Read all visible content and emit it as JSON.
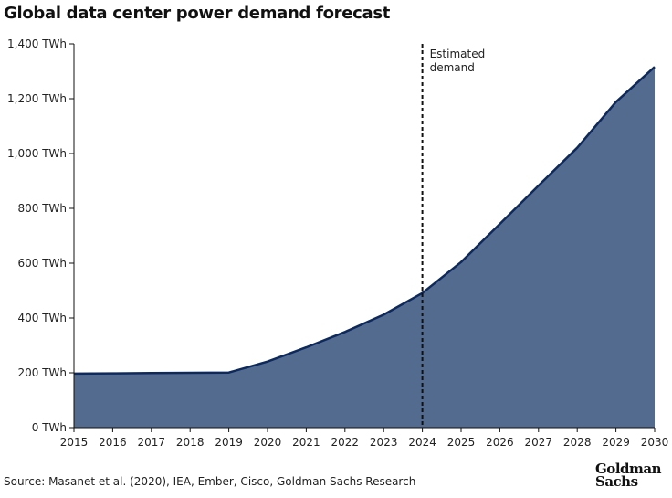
{
  "chart_data": {
    "type": "area",
    "title": "Global data center power demand forecast",
    "x": [
      2015,
      2016,
      2017,
      2018,
      2019,
      2020,
      2021,
      2022,
      2023,
      2024,
      2025,
      2026,
      2027,
      2028,
      2029,
      2030
    ],
    "values": [
      197,
      198,
      199,
      200,
      201,
      241,
      293,
      349,
      412,
      491,
      604,
      743,
      883,
      1021,
      1188,
      1316
    ],
    "y_ticks": [
      "0 TWh",
      "200 TWh",
      "400 TWh",
      "600 TWh",
      "800 TWh",
      "1,000 TWh",
      "1,200 TWh",
      "1,400 TWh"
    ],
    "ylim": [
      0,
      1400
    ],
    "xlim": [
      2015,
      2030
    ],
    "grid": false,
    "annotation": {
      "x": 2024,
      "text_line1": "Estimated",
      "text_line2": "demand",
      "style": "dashed vertical line"
    },
    "colors": {
      "fill": "#536b8f",
      "line": "#0e2a5c"
    }
  },
  "source": "Source: Masanet et al. (2020), IEA, Ember, Cisco, Goldman Sachs Research",
  "logo": {
    "line1": "Goldman",
    "line2": "Sachs"
  }
}
